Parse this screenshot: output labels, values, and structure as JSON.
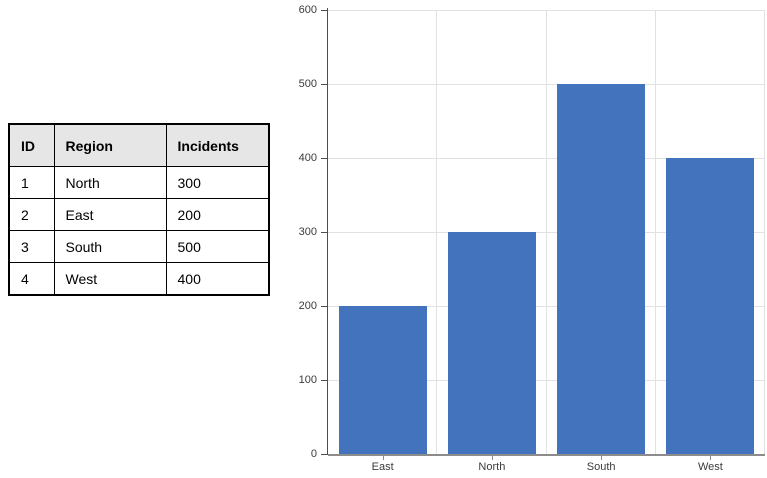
{
  "table": {
    "columns": [
      "ID",
      "Region",
      "Incidents"
    ],
    "rows": [
      {
        "id": "1",
        "region": "North",
        "incidents": "300"
      },
      {
        "id": "2",
        "region": "East",
        "incidents": "200"
      },
      {
        "id": "3",
        "region": "South",
        "incidents": "500"
      },
      {
        "id": "4",
        "region": "West",
        "incidents": "400"
      }
    ]
  },
  "chart_data": {
    "type": "bar",
    "categories": [
      "East",
      "North",
      "South",
      "West"
    ],
    "values": [
      200,
      300,
      500,
      400
    ],
    "title": "",
    "xlabel": "",
    "ylabel": "",
    "ylim": [
      0,
      600
    ],
    "ytick_interval": 100,
    "grid": true,
    "legend": "none",
    "colors": {
      "bar_fill": "#4373BC",
      "gridline": "#E2E2E2",
      "baseline": "#8C8C8C",
      "axis_line": "#4D4D4D",
      "tick_mark": "#4D4D4D",
      "x_tick_mark": "#8C8C8C",
      "label_text": "#3B3B3B"
    }
  }
}
